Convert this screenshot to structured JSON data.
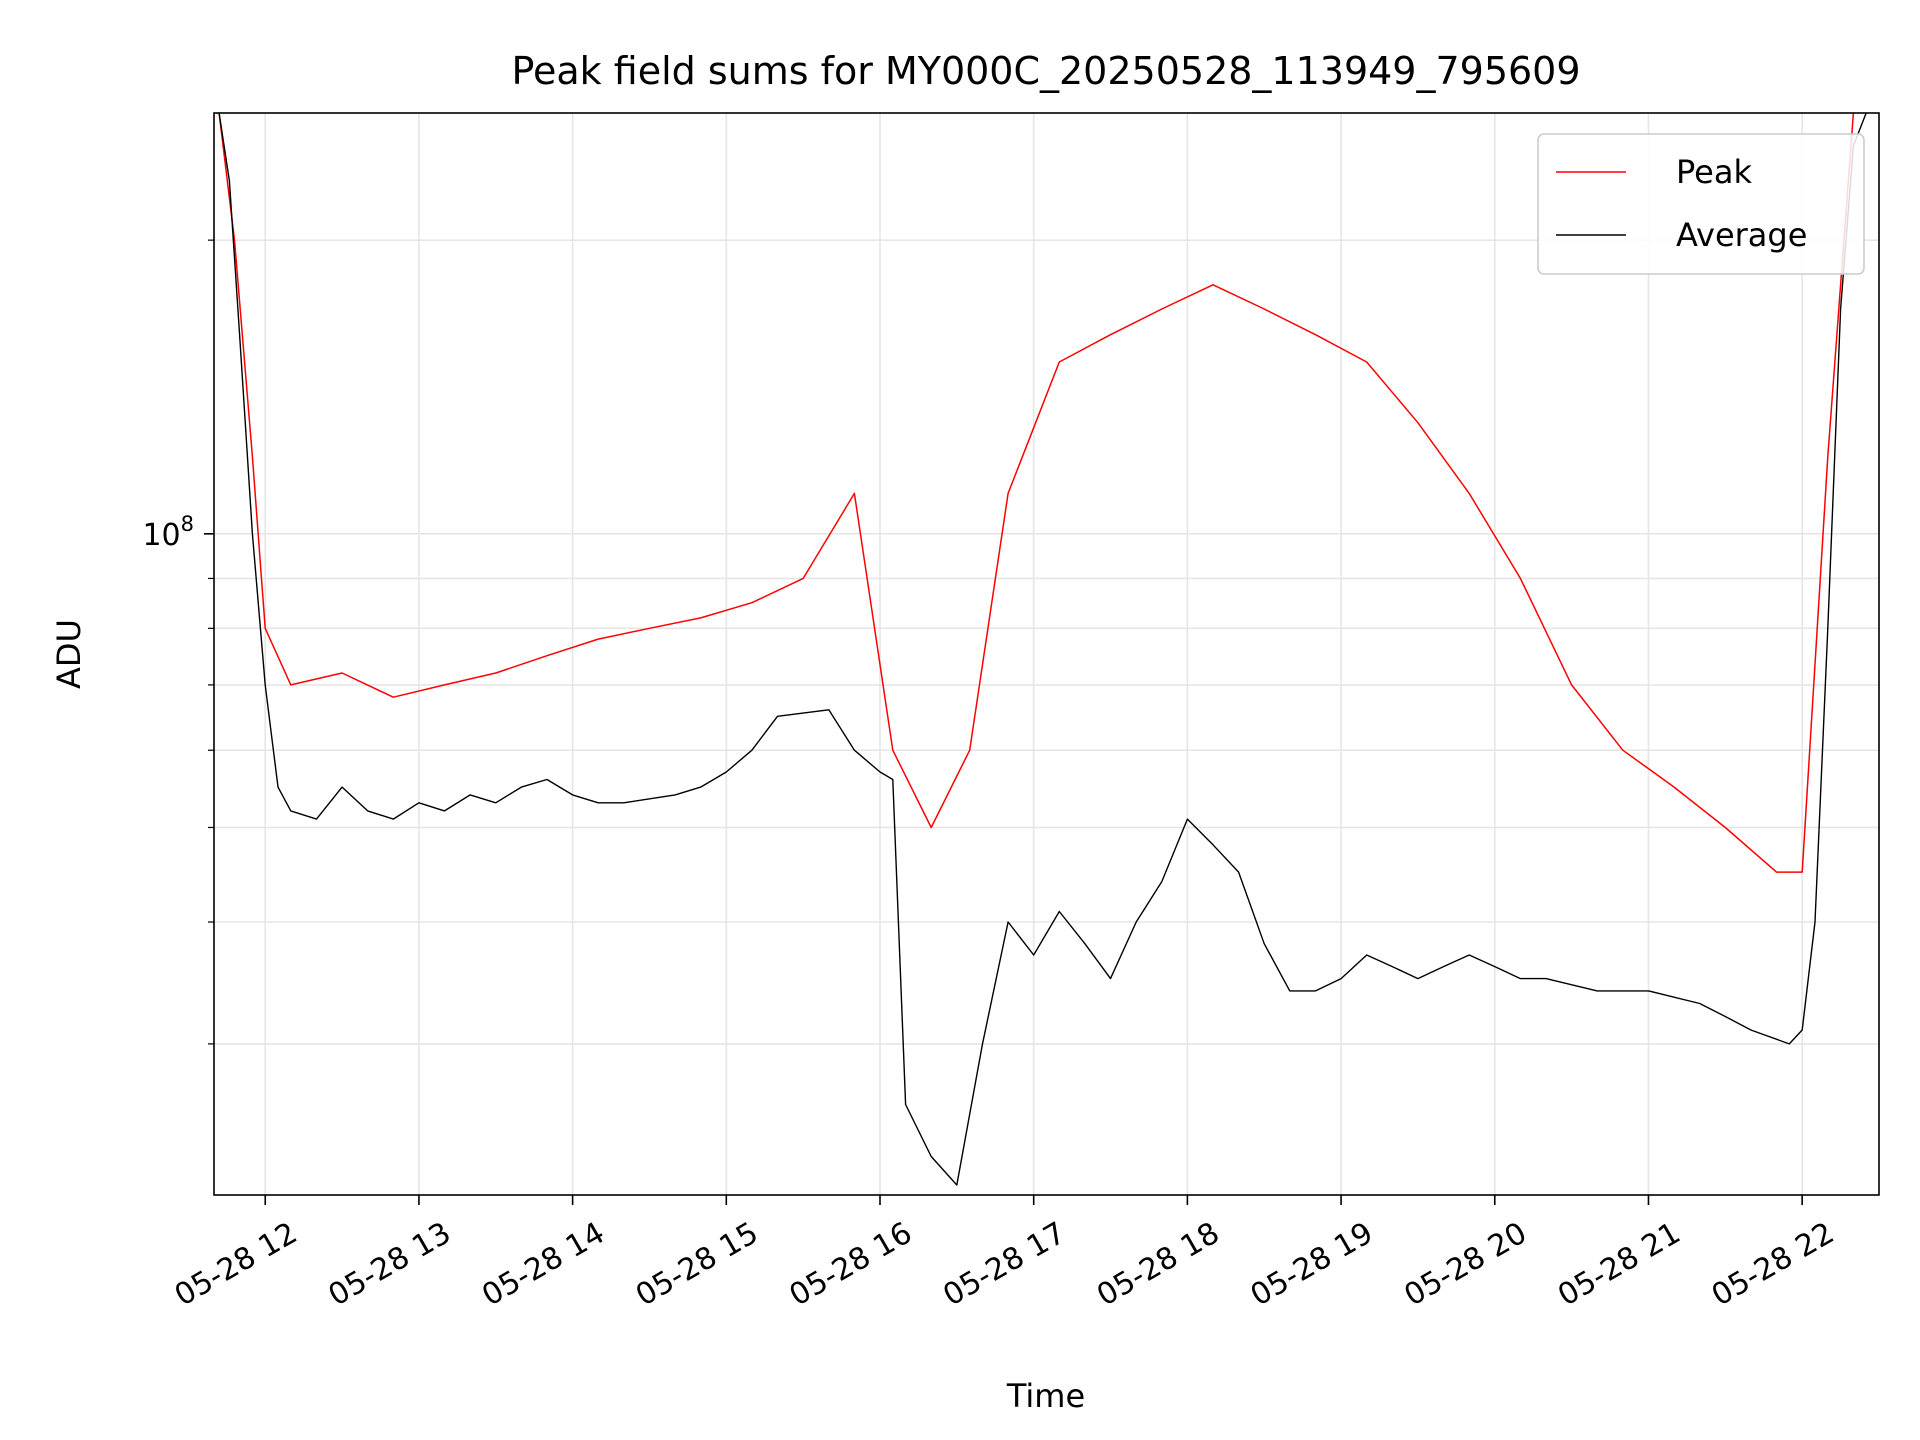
{
  "chart_data": {
    "type": "line",
    "title": "Peak field sums for MY000C_20250528_113949_795609",
    "xlabel": "Time",
    "ylabel": "ADU",
    "x_scale": "time",
    "y_scale": "log",
    "grid": true,
    "legend_position": "top-right",
    "x_ticks": [
      "05-28 12",
      "05-28 13",
      "05-28 14",
      "05-28 15",
      "05-28 16",
      "05-28 17",
      "05-28 18",
      "05-28 19",
      "05-28 20",
      "05-28 21",
      "05-28 22"
    ],
    "y_major_tick_labels": [
      {
        "base": "10",
        "exp": "8",
        "value": 100000000
      }
    ],
    "xlim": [
      "2025-05-28 11:40",
      "2025-05-28 22:30"
    ],
    "ylim": [
      21000000,
      270000000
    ],
    "series": [
      {
        "name": "Peak",
        "color": "#ff0000",
        "x": [
          "2025-05-28 11:42",
          "2025-05-28 11:48",
          "2025-05-28 11:55",
          "2025-05-28 12:00",
          "2025-05-28 12:10",
          "2025-05-28 12:30",
          "2025-05-28 12:50",
          "2025-05-28 13:10",
          "2025-05-28 13:30",
          "2025-05-28 13:50",
          "2025-05-28 14:10",
          "2025-05-28 14:30",
          "2025-05-28 14:50",
          "2025-05-28 15:10",
          "2025-05-28 15:30",
          "2025-05-28 15:50",
          "2025-05-28 16:05",
          "2025-05-28 16:20",
          "2025-05-28 16:35",
          "2025-05-28 16:50",
          "2025-05-28 17:10",
          "2025-05-28 17:30",
          "2025-05-28 17:50",
          "2025-05-28 18:10",
          "2025-05-28 18:30",
          "2025-05-28 18:50",
          "2025-05-28 19:10",
          "2025-05-28 19:30",
          "2025-05-28 19:50",
          "2025-05-28 20:10",
          "2025-05-28 20:30",
          "2025-05-28 20:50",
          "2025-05-28 21:10",
          "2025-05-28 21:30",
          "2025-05-28 21:50",
          "2025-05-28 22:00",
          "2025-05-28 22:10",
          "2025-05-28 22:20"
        ],
        "y": [
          270000000,
          200000000,
          120000000,
          80000000,
          70000000,
          72000000,
          68000000,
          70000000,
          72000000,
          75000000,
          78000000,
          80000000,
          82000000,
          85000000,
          90000000,
          110000000,
          60000000,
          50000000,
          60000000,
          110000000,
          150000000,
          160000000,
          170000000,
          180000000,
          170000000,
          160000000,
          150000000,
          130000000,
          110000000,
          90000000,
          70000000,
          60000000,
          55000000,
          50000000,
          45000000,
          45000000,
          120000000,
          270000000
        ]
      },
      {
        "name": "Average",
        "color": "#000000",
        "x": [
          "2025-05-28 11:42",
          "2025-05-28 11:46",
          "2025-05-28 11:50",
          "2025-05-28 11:55",
          "2025-05-28 12:00",
          "2025-05-28 12:05",
          "2025-05-28 12:10",
          "2025-05-28 12:20",
          "2025-05-28 12:30",
          "2025-05-28 12:40",
          "2025-05-28 12:50",
          "2025-05-28 13:00",
          "2025-05-28 13:10",
          "2025-05-28 13:20",
          "2025-05-28 13:30",
          "2025-05-28 13:40",
          "2025-05-28 13:50",
          "2025-05-28 14:00",
          "2025-05-28 14:10",
          "2025-05-28 14:20",
          "2025-05-28 14:40",
          "2025-05-28 14:50",
          "2025-05-28 15:00",
          "2025-05-28 15:10",
          "2025-05-28 15:20",
          "2025-05-28 15:40",
          "2025-05-28 15:50",
          "2025-05-28 16:00",
          "2025-05-28 16:05",
          "2025-05-28 16:10",
          "2025-05-28 16:20",
          "2025-05-28 16:30",
          "2025-05-28 16:40",
          "2025-05-28 16:50",
          "2025-05-28 17:00",
          "2025-05-28 17:10",
          "2025-05-28 17:20",
          "2025-05-28 17:30",
          "2025-05-28 17:40",
          "2025-05-28 17:50",
          "2025-05-28 18:00",
          "2025-05-28 18:10",
          "2025-05-28 18:20",
          "2025-05-28 18:30",
          "2025-05-28 18:40",
          "2025-05-28 18:50",
          "2025-05-28 19:00",
          "2025-05-28 19:10",
          "2025-05-28 19:20",
          "2025-05-28 19:30",
          "2025-05-28 19:40",
          "2025-05-28 19:50",
          "2025-05-28 20:00",
          "2025-05-28 20:10",
          "2025-05-28 20:20",
          "2025-05-28 20:40",
          "2025-05-28 21:00",
          "2025-05-28 21:20",
          "2025-05-28 21:30",
          "2025-05-28 21:40",
          "2025-05-28 21:55",
          "2025-05-28 22:00",
          "2025-05-28 22:05",
          "2025-05-28 22:10",
          "2025-05-28 22:15",
          "2025-05-28 22:20",
          "2025-05-28 22:25"
        ],
        "y": [
          270000000,
          230000000,
          160000000,
          100000000,
          70000000,
          55000000,
          52000000,
          51000000,
          55000000,
          52000000,
          51000000,
          53000000,
          52000000,
          54000000,
          53000000,
          55000000,
          56000000,
          54000000,
          53000000,
          53000000,
          54000000,
          55000000,
          57000000,
          60000000,
          65000000,
          66000000,
          60000000,
          57000000,
          56000000,
          26000000,
          23000000,
          21500000,
          30000000,
          40000000,
          37000000,
          41000000,
          38000000,
          35000000,
          40000000,
          44000000,
          51000000,
          48000000,
          45000000,
          38000000,
          34000000,
          34000000,
          35000000,
          37000000,
          36000000,
          35000000,
          36000000,
          37000000,
          36000000,
          35000000,
          35000000,
          34000000,
          34000000,
          33000000,
          32000000,
          31000000,
          30000000,
          31000000,
          40000000,
          80000000,
          170000000,
          250000000,
          270000000
        ]
      }
    ]
  }
}
